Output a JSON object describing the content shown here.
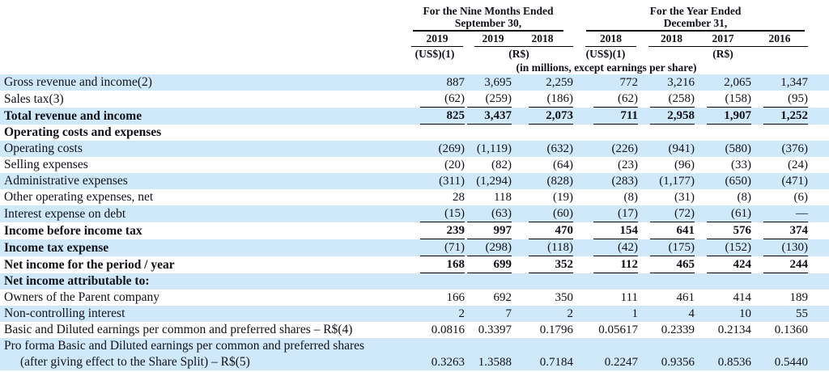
{
  "table": {
    "groups": [
      {
        "line1": "For the Nine Months Ended",
        "line2": "September 30,"
      },
      {
        "line1": "For the Year Ended",
        "line2": "December 31,"
      }
    ],
    "col_years": [
      "2019",
      "2019",
      "2018",
      "2018",
      "2018",
      "2017",
      "2016"
    ],
    "currency_labels": [
      "(US$)(1)",
      "(R$)",
      "(US$)(1)",
      "(R$)"
    ],
    "unit_note": "(in millions, except earnings per share)",
    "colors": {
      "row_highlight": "#cfe8fa",
      "text": "#101218",
      "rule": "#000000"
    },
    "rows": [
      {
        "label": "Gross revenue and income(2)",
        "values": [
          "887",
          "3,695",
          "2,259",
          "772",
          "3,216",
          "2,065",
          "1,347"
        ],
        "bold": false,
        "bold_values": false,
        "underline": false
      },
      {
        "label": "Sales tax(3)",
        "values": [
          "(62)",
          "(259)",
          "(186)",
          "(62)",
          "(258)",
          "(158)",
          "(95)"
        ],
        "bold": false,
        "bold_values": false,
        "underline": true
      },
      {
        "label": "Total revenue and income",
        "values": [
          "825",
          "3,437",
          "2,073",
          "711",
          "2,958",
          "1,907",
          "1,252"
        ],
        "bold": true,
        "bold_values": true,
        "underline": true
      },
      {
        "label": "Operating costs and expenses",
        "values": [],
        "bold": true,
        "bold_values": false,
        "underline": false
      },
      {
        "label": "Operating costs",
        "values": [
          "(269)",
          "(1,119)",
          "(632)",
          "(226)",
          "(941)",
          "(580)",
          "(376)"
        ],
        "bold": false,
        "bold_values": false,
        "underline": false
      },
      {
        "label": "Selling expenses",
        "values": [
          "(20)",
          "(82)",
          "(64)",
          "(23)",
          "(96)",
          "(33)",
          "(24)"
        ],
        "bold": false,
        "bold_values": false,
        "underline": false
      },
      {
        "label": "Administrative expenses",
        "values": [
          "(311)",
          "(1,294)",
          "(828)",
          "(283)",
          "(1,177)",
          "(650)",
          "(471)"
        ],
        "bold": false,
        "bold_values": false,
        "underline": false
      },
      {
        "label": "Other operating expenses, net",
        "values": [
          "28",
          "118",
          "(19)",
          "(8)",
          "(31)",
          "(8)",
          "(6)"
        ],
        "bold": false,
        "bold_values": false,
        "underline": false
      },
      {
        "label": "Interest expense on debt",
        "values": [
          "(15)",
          "(63)",
          "(60)",
          "(17)",
          "(72)",
          "(61)",
          "—"
        ],
        "bold": false,
        "bold_values": false,
        "underline": true
      },
      {
        "label": "Income before income tax",
        "values": [
          "239",
          "997",
          "470",
          "154",
          "641",
          "576",
          "374"
        ],
        "bold": true,
        "bold_values": true,
        "underline": true
      },
      {
        "label": "Income tax expense",
        "values": [
          "(71)",
          "(298)",
          "(118)",
          "(42)",
          "(175)",
          "(152)",
          "(130)"
        ],
        "bold": true,
        "bold_values": false,
        "underline": true
      },
      {
        "label": "Net income for the period / year",
        "values": [
          "168",
          "699",
          "352",
          "112",
          "465",
          "424",
          "244"
        ],
        "bold": true,
        "bold_values": true,
        "underline": true
      },
      {
        "label": "Net income attributable to:",
        "values": [],
        "bold": true,
        "bold_values": false,
        "underline": false
      },
      {
        "label": "Owners of the Parent company",
        "values": [
          "166",
          "692",
          "350",
          "111",
          "461",
          "414",
          "189"
        ],
        "bold": false,
        "bold_values": false,
        "underline": false
      },
      {
        "label": "Non-controlling interest",
        "values": [
          "2",
          "7",
          "2",
          "1",
          "4",
          "10",
          "55"
        ],
        "bold": false,
        "bold_values": false,
        "underline": false
      },
      {
        "label": "Basic and Diluted earnings per common and preferred shares – R$(4)",
        "values": [
          "0.0816",
          "0.3397",
          "0.1796",
          "0.05617",
          "0.2339",
          "0.2134",
          "0.1360"
        ],
        "bold": false,
        "bold_values": false,
        "underline": false
      },
      {
        "label": "Pro forma Basic and Diluted earnings per common and preferred shares",
        "label_line2": "(after giving effect to the Share Split) – R$(5)",
        "values": [
          "0.3263",
          "1.3588",
          "0.7184",
          "0.2247",
          "0.9356",
          "0.8536",
          "0.5440"
        ],
        "bold": false,
        "bold_values": false,
        "underline": false,
        "tall": true
      }
    ]
  }
}
